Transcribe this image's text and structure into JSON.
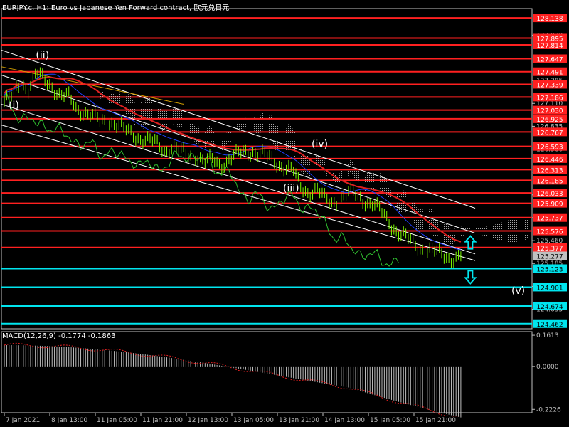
{
  "chart_data": {
    "type": "line",
    "symbol": "EURJPY.c",
    "timeframe": "H1",
    "description": "Euro vs Japanese Yen Forward contract, 欧元兑日元",
    "price_axis": {
      "range": [
        124.4,
        128.25
      ],
      "ticks": [
        "127.930",
        "127.655",
        "127.385",
        "127.110",
        "126.835",
        "126.560",
        "126.285",
        "126.010",
        "125.735",
        "125.460",
        "125.185",
        "124.910",
        "124.635"
      ]
    },
    "level_lines": [
      {
        "value": "128.138",
        "color": "#ff2020"
      },
      {
        "value": "127.895",
        "color": "#ff2020"
      },
      {
        "value": "127.814",
        "color": "#ff2020"
      },
      {
        "value": "127.647",
        "color": "#ff2020"
      },
      {
        "value": "127.491",
        "color": "#ff2020"
      },
      {
        "value": "127.339",
        "color": "#ff2020"
      },
      {
        "value": "127.186",
        "color": "#ff2020"
      },
      {
        "value": "127.030",
        "color": "#ff2020"
      },
      {
        "value": "126.925",
        "color": "#ff2020"
      },
      {
        "value": "126.767",
        "color": "#ff2020"
      },
      {
        "value": "126.593",
        "color": "#ff2020"
      },
      {
        "value": "126.446",
        "color": "#ff2020"
      },
      {
        "value": "126.313",
        "color": "#ff2020"
      },
      {
        "value": "126.185",
        "color": "#ff2020"
      },
      {
        "value": "126.033",
        "color": "#ff2020"
      },
      {
        "value": "125.909",
        "color": "#ff2020"
      },
      {
        "value": "125.737",
        "color": "#ff2020"
      },
      {
        "value": "125.576",
        "color": "#ff2020"
      },
      {
        "value": "125.377",
        "color": "#ff2020"
      },
      {
        "value": "125.123",
        "color": "#00e5ee"
      },
      {
        "value": "124.901",
        "color": "#00e5ee"
      },
      {
        "value": "124.674",
        "color": "#00e5ee"
      },
      {
        "value": "124.462",
        "color": "#00e5ee"
      }
    ],
    "current_price": "125.277",
    "time_labels": [
      "7 Jan 2021",
      "8 Jan 13:00",
      "11 Jan 05:00",
      "11 Jan 21:00",
      "12 Jan 13:00",
      "13 Jan 05:00",
      "13 Jan 21:00",
      "14 Jan 13:00",
      "15 Jan 05:00",
      "15 Jan 21:00"
    ],
    "n_bars": 192,
    "close_series": [
      127.13,
      127.18,
      127.36,
      127.3,
      127.46,
      127.38,
      127.33,
      127.2,
      127.18,
      127.05,
      127.02,
      126.95,
      126.88,
      126.92,
      126.86,
      126.78,
      126.74,
      126.7,
      126.66,
      126.62,
      126.55,
      126.6,
      126.52,
      126.48,
      126.5,
      126.4,
      126.42,
      126.38,
      126.44,
      126.48,
      126.52,
      126.55,
      126.5,
      126.45,
      126.4,
      126.35,
      126.3,
      126.1,
      126.05,
      126.08,
      125.95,
      125.92,
      125.98,
      126.02,
      126.0,
      125.95,
      125.9,
      125.8,
      125.7,
      125.58,
      125.5,
      125.42,
      125.38,
      125.35,
      125.3,
      125.28,
      125.25,
      125.27
    ],
    "waves": [
      {
        "label": "(i)",
        "value": 127.05
      },
      {
        "label": "(ii)",
        "value": 127.65
      },
      {
        "label": "(iii)",
        "value": 126.05
      },
      {
        "label": "(iv)",
        "value": 126.58
      },
      {
        "label": "(v)",
        "value": 124.82
      }
    ],
    "macd": {
      "title": "MACD(12,26,9) -0.1774 -0.1863",
      "params": [
        12,
        26,
        9
      ],
      "macd_value": -0.1774,
      "signal_value": -0.1863,
      "range": [
        -0.24,
        0.18
      ],
      "ticks": [
        "0.1613",
        "0.0000",
        "-0.2226"
      ]
    },
    "arrows": [
      {
        "direction": "up",
        "value": 125.43,
        "color": "#00e5ee"
      },
      {
        "direction": "down",
        "value": 125.03,
        "color": "#00e5ee"
      }
    ]
  }
}
